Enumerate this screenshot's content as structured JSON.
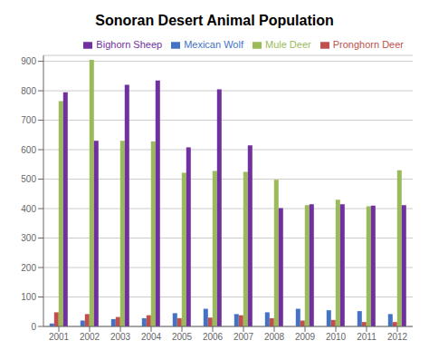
{
  "chart_data": {
    "type": "bar",
    "title": "Sonoran Desert Animal Population",
    "categories": [
      "2001",
      "2002",
      "2003",
      "2004",
      "2005",
      "2006",
      "2007",
      "2008",
      "2009",
      "2010",
      "2011",
      "2012"
    ],
    "series": [
      {
        "name": "Mexican Wolf",
        "color": "#4472C4",
        "values": [
          10,
          20,
          25,
          28,
          45,
          60,
          42,
          48,
          60,
          55,
          52,
          42
        ]
      },
      {
        "name": "Pronghorn Deer",
        "color": "#C0504D",
        "values": [
          48,
          42,
          32,
          38,
          28,
          30,
          38,
          28,
          20,
          22,
          15,
          15
        ]
      },
      {
        "name": "Mule Deer",
        "color": "#9BBB59",
        "values": [
          765,
          905,
          630,
          628,
          522,
          528,
          525,
          498,
          412,
          430,
          408,
          530
        ]
      },
      {
        "name": "Bighorn Sheep",
        "color": "#7030A0",
        "values": [
          795,
          630,
          820,
          835,
          608,
          805,
          615,
          402,
          415,
          415,
          410,
          412
        ]
      }
    ],
    "ylim": [
      0,
      920
    ],
    "yticks": [
      0,
      100,
      200,
      300,
      400,
      500,
      600,
      700,
      800,
      900
    ],
    "grid": true,
    "legend": "upper right"
  }
}
